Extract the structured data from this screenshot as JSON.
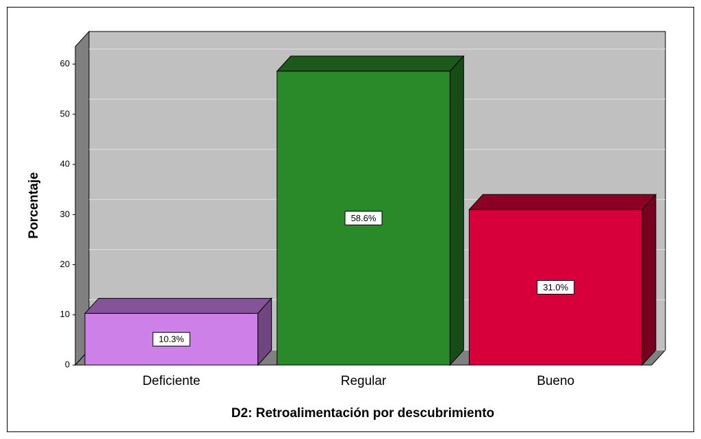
{
  "chart_data": {
    "type": "bar",
    "x_label": "D2: Retroalimentación por descubrimiento",
    "y_label": "Porcentaje",
    "categories": [
      "Deficiente",
      "Regular",
      "Bueno"
    ],
    "values": [
      10.3,
      58.6,
      31.0
    ],
    "value_labels": [
      "10.3%",
      "58.6%",
      "31.0%"
    ],
    "colors": [
      "#cc80e8",
      "#2a8a2a",
      "#d8003a"
    ],
    "ylim": [
      0,
      63.5
    ],
    "yticks": [
      0,
      10,
      20,
      30,
      40,
      50,
      60
    ],
    "grid": true
  }
}
